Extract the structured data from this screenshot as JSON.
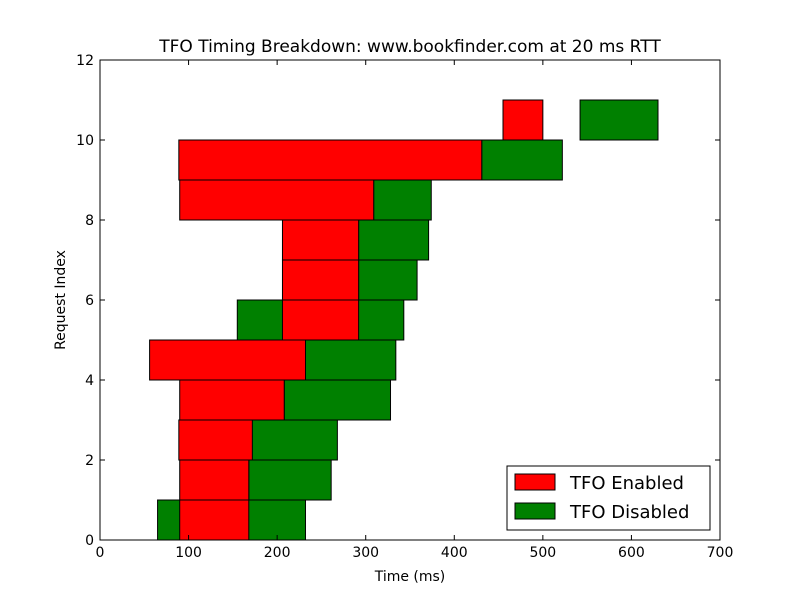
{
  "chart_data": {
    "type": "bar",
    "orientation": "horizontal",
    "title": "TFO Timing Breakdown: www.bookfinder.com at 20 ms RTT",
    "xlabel": "Time (ms)",
    "ylabel": "Request Index",
    "xlim": [
      0,
      700
    ],
    "ylim": [
      0,
      12
    ],
    "xticks": [
      0,
      100,
      200,
      300,
      400,
      500,
      600,
      700
    ],
    "yticks": [
      0,
      2,
      4,
      6,
      8,
      10,
      12
    ],
    "grid": false,
    "legend_position": "lower-right",
    "series": [
      {
        "name": "TFO Enabled",
        "color": "#ff0000",
        "bars": [
          {
            "index": 0,
            "start": 90,
            "end": 168
          },
          {
            "index": 1,
            "start": 90,
            "end": 168
          },
          {
            "index": 2,
            "start": 89,
            "end": 172
          },
          {
            "index": 3,
            "start": 90,
            "end": 208
          },
          {
            "index": 4,
            "start": 56,
            "end": 232
          },
          {
            "index": 5,
            "start": 206,
            "end": 292
          },
          {
            "index": 6,
            "start": 206,
            "end": 292
          },
          {
            "index": 7,
            "start": 206,
            "end": 292
          },
          {
            "index": 8,
            "start": 90,
            "end": 309
          },
          {
            "index": 9,
            "start": 89,
            "end": 431
          },
          {
            "index": 10,
            "start": 455,
            "end": 500
          }
        ]
      },
      {
        "name": "TFO Disabled",
        "color": "#008000",
        "bars": [
          {
            "index": 0,
            "start": 65,
            "end": 232
          },
          {
            "index": 1,
            "start": 168,
            "end": 261
          },
          {
            "index": 2,
            "start": 168,
            "end": 268
          },
          {
            "index": 3,
            "start": 208,
            "end": 328
          },
          {
            "index": 4,
            "start": 232,
            "end": 334
          },
          {
            "index": 5,
            "start": 155,
            "end": 343
          },
          {
            "index": 6,
            "start": 292,
            "end": 358
          },
          {
            "index": 7,
            "start": 292,
            "end": 371
          },
          {
            "index": 8,
            "start": 309,
            "end": 374
          },
          {
            "index": 9,
            "start": 431,
            "end": 522
          },
          {
            "index": 10,
            "start": 542,
            "end": 630
          }
        ]
      }
    ]
  }
}
